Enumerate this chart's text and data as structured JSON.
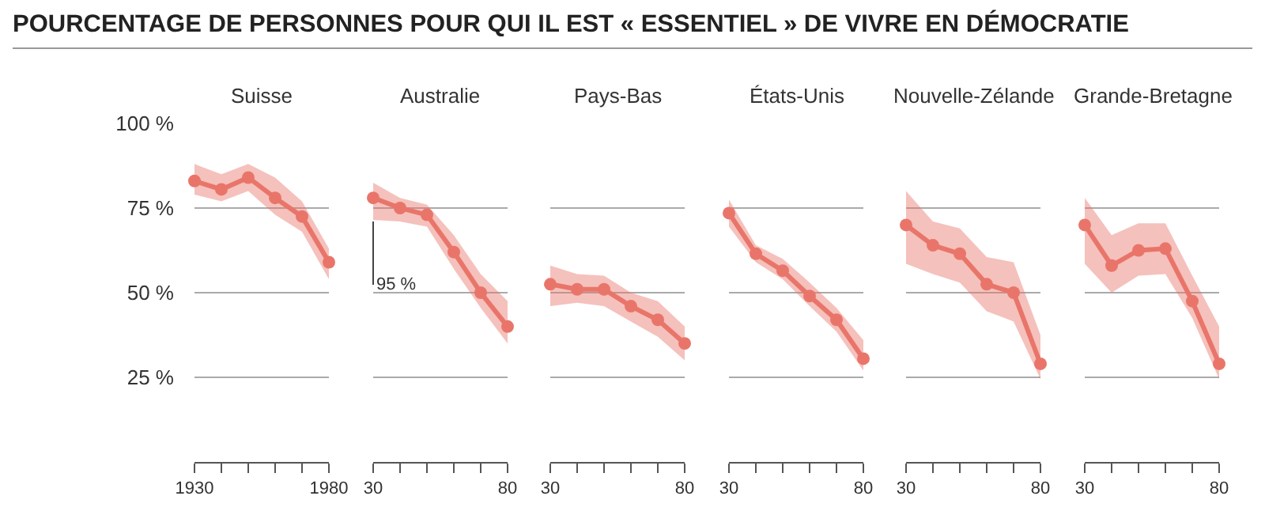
{
  "chart_data": [
    {
      "type": "line",
      "title": "Suisse",
      "annotations": [
        "POURCENTAGE DE PERSONNES POUR QUI IL EST « ESSENTIEL » DE VIVRE EN DÉMOCRATIE"
      ],
      "x": [
        1930,
        1940,
        1950,
        1960,
        1970,
        1980
      ],
      "xlim": [
        1930,
        1980
      ],
      "xticks": [
        1930,
        {
          "value": 1940,
          "label": null
        },
        {
          "value": 1950,
          "label": null
        },
        {
          "value": 1960,
          "label": null
        },
        {
          "value": 1970,
          "label": null
        },
        1980
      ],
      "ylim": [
        0,
        100
      ],
      "yticks": [
        {
          "value": 25,
          "label": "25 %"
        },
        {
          "value": 50,
          "label": "50 %"
        },
        {
          "value": 75,
          "label": "75 %"
        },
        {
          "value": 100,
          "label": "100 %"
        }
      ],
      "grid": "y",
      "marker": "circle",
      "series": [
        {
          "color": "#e9756a",
          "values": [
            83,
            80.5,
            84,
            78,
            72.5,
            59
          ],
          "lower": [
            79,
            77,
            80,
            73,
            68,
            54
          ],
          "upper": [
            88,
            85,
            88,
            84,
            77,
            63
          ]
        }
      ]
    },
    {
      "type": "line",
      "title": "Australie",
      "annotations": [
        {
          "text": "95 %",
          "x": 1930,
          "y": 71
        }
      ],
      "x": [
        1930,
        1940,
        1950,
        1960,
        1970,
        1980
      ],
      "xlim": [
        1930,
        1980
      ],
      "xticks": [
        {
          "value": 1930,
          "label": "30"
        },
        {
          "value": 1940,
          "label": null
        },
        {
          "value": 1950,
          "label": null
        },
        {
          "value": 1960,
          "label": null
        },
        {
          "value": 1970,
          "label": null
        },
        {
          "value": 1980,
          "label": "80"
        }
      ],
      "ylim": [
        0,
        100
      ],
      "yticks": [
        25,
        50,
        75,
        100
      ],
      "tick_labels": "x",
      "grid": "y",
      "marker": "circle",
      "series": [
        {
          "color": "#e9756a",
          "values": [
            78,
            75,
            73,
            62,
            50,
            40
          ],
          "lower": [
            71.5,
            71,
            69.5,
            57,
            45.5,
            35
          ],
          "upper": [
            82.5,
            78,
            76,
            67,
            55.5,
            47.5
          ]
        }
      ]
    },
    {
      "type": "line",
      "title": "Pays-Bas",
      "x": [
        1930,
        1940,
        1950,
        1960,
        1970,
        1980
      ],
      "xlim": [
        1930,
        1980
      ],
      "xticks": [
        {
          "value": 1930,
          "label": "30"
        },
        {
          "value": 1940,
          "label": null
        },
        {
          "value": 1950,
          "label": null
        },
        {
          "value": 1960,
          "label": null
        },
        {
          "value": 1970,
          "label": null
        },
        {
          "value": 1980,
          "label": "80"
        }
      ],
      "ylim": [
        0,
        100
      ],
      "yticks": [
        25,
        50,
        75,
        100
      ],
      "tick_labels": "x",
      "grid": "y",
      "marker": "circle",
      "series": [
        {
          "color": "#e9756a",
          "values": [
            52.5,
            51,
            51,
            46,
            42,
            35
          ],
          "lower": [
            46,
            47,
            46,
            41.5,
            37,
            30
          ],
          "upper": [
            58,
            55.5,
            55,
            50,
            47.5,
            40
          ]
        }
      ]
    },
    {
      "type": "line",
      "title": "États-Unis",
      "x": [
        1930,
        1940,
        1950,
        1960,
        1970,
        1980
      ],
      "xlim": [
        1930,
        1980
      ],
      "xticks": [
        {
          "value": 1930,
          "label": "30"
        },
        {
          "value": 1940,
          "label": null
        },
        {
          "value": 1950,
          "label": null
        },
        {
          "value": 1960,
          "label": null
        },
        {
          "value": 1970,
          "label": null
        },
        {
          "value": 1980,
          "label": "80"
        }
      ],
      "ylim": [
        0,
        100
      ],
      "yticks": [
        25,
        50,
        75,
        100
      ],
      "tick_labels": "x",
      "grid": "y",
      "marker": "circle",
      "series": [
        {
          "color": "#e9756a",
          "values": [
            73.5,
            61.5,
            56.5,
            49,
            42,
            30.5
          ],
          "lower": [
            69.5,
            59,
            54,
            46,
            38.5,
            27
          ],
          "upper": [
            77.5,
            64,
            60,
            53,
            45.5,
            36
          ]
        }
      ]
    },
    {
      "type": "line",
      "title": "Nouvelle-Zélande",
      "x": [
        1930,
        1940,
        1950,
        1960,
        1970,
        1980
      ],
      "xlim": [
        1930,
        1980
      ],
      "xticks": [
        {
          "value": 1930,
          "label": "30"
        },
        {
          "value": 1940,
          "label": null
        },
        {
          "value": 1950,
          "label": null
        },
        {
          "value": 1960,
          "label": null
        },
        {
          "value": 1970,
          "label": null
        },
        {
          "value": 1980,
          "label": "80"
        }
      ],
      "ylim": [
        0,
        100
      ],
      "yticks": [
        25,
        50,
        75,
        100
      ],
      "tick_labels": "x",
      "grid": "y",
      "marker": "circle",
      "series": [
        {
          "color": "#e9756a",
          "values": [
            70,
            64,
            61.5,
            52.5,
            50,
            29
          ],
          "lower": [
            58.5,
            55.5,
            53,
            44.5,
            41.5,
            24.5
          ],
          "upper": [
            80,
            71,
            69,
            60.5,
            59,
            37.5
          ]
        }
      ]
    },
    {
      "type": "line",
      "title": "Grande-Bretagne",
      "x": [
        1930,
        1940,
        1950,
        1960,
        1970,
        1980
      ],
      "xlim": [
        1930,
        1980
      ],
      "xticks": [
        {
          "value": 1930,
          "label": "30"
        },
        {
          "value": 1940,
          "label": null
        },
        {
          "value": 1950,
          "label": null
        },
        {
          "value": 1960,
          "label": null
        },
        {
          "value": 1970,
          "label": null
        },
        {
          "value": 1980,
          "label": "80"
        }
      ],
      "ylim": [
        0,
        100
      ],
      "yticks": [
        25,
        50,
        75,
        100
      ],
      "tick_labels": "x",
      "grid": "y",
      "marker": "circle",
      "series": [
        {
          "color": "#e9756a",
          "values": [
            70,
            58,
            62.5,
            63,
            47.5,
            29
          ],
          "lower": [
            58.5,
            50,
            55,
            55.5,
            42.5,
            24.5
          ],
          "upper": [
            78,
            67,
            70.5,
            70.5,
            55,
            40
          ]
        }
      ]
    }
  ]
}
